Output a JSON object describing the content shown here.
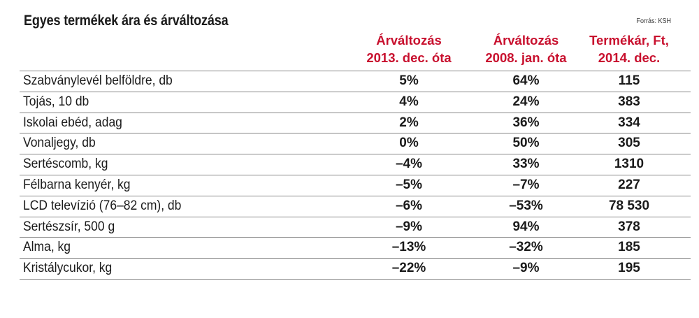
{
  "chart_data": {
    "type": "table",
    "title": "Egyes termékek ára és árváltozása",
    "source": "Forrás: KSH",
    "columns": [
      [
        "Árváltozás",
        "2013. dec. óta"
      ],
      [
        "Árváltozás",
        "2008. jan. óta"
      ],
      [
        "Termékár, Ft,",
        "2014. dec."
      ]
    ],
    "rows": [
      {
        "label": "Szabványlevél belföldre, db",
        "values": [
          "5%",
          "64%",
          "115"
        ]
      },
      {
        "label": "Tojás, 10 db",
        "values": [
          "4%",
          "24%",
          "383"
        ]
      },
      {
        "label": "Iskolai ebéd, adag",
        "values": [
          "2%",
          "36%",
          "334"
        ]
      },
      {
        "label": "Vonaljegy, db",
        "values": [
          "0%",
          "50%",
          "305"
        ]
      },
      {
        "label": "Sertéscomb, kg",
        "values": [
          "–4%",
          "33%",
          "1310"
        ]
      },
      {
        "label": "Félbarna kenyér, kg",
        "values": [
          "–5%",
          "–7%",
          "227"
        ]
      },
      {
        "label": "LCD televízió (76–82 cm), db",
        "values": [
          "–6%",
          "–53%",
          "78 530"
        ]
      },
      {
        "label": "Sertészsír, 500 g",
        "values": [
          "–9%",
          "94%",
          "378"
        ]
      },
      {
        "label": "Alma, kg",
        "values": [
          "–13%",
          "–32%",
          "185"
        ]
      },
      {
        "label": "Kristálycukor, kg",
        "values": [
          "–22%",
          "–9%",
          "195"
        ]
      }
    ],
    "header_color": "#c8102e"
  }
}
